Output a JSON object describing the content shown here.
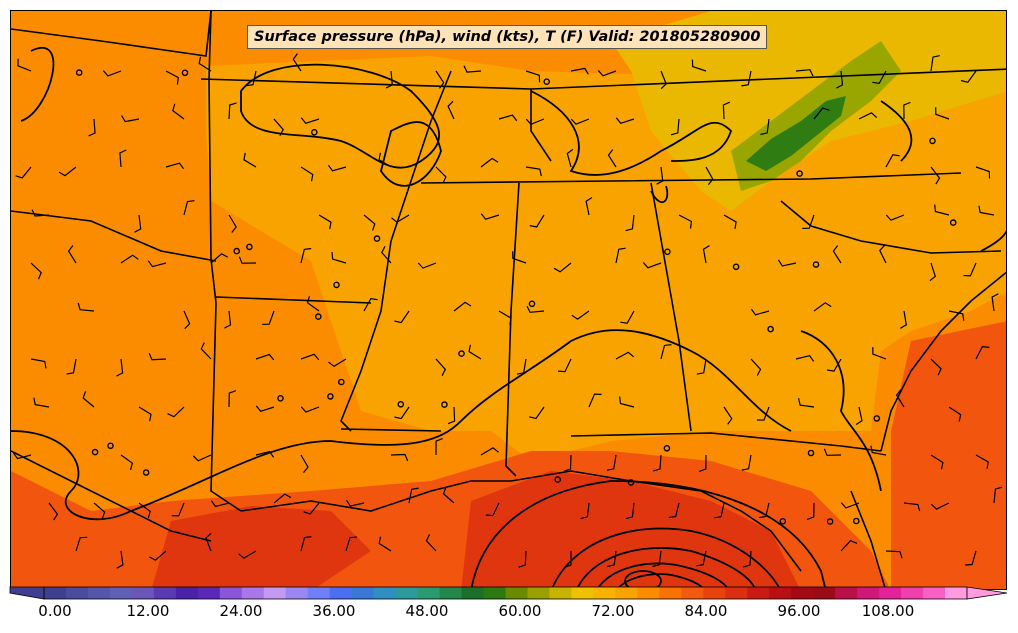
{
  "title": "Surface pressure (hPa), wind (kts), T (F) Valid: 201805280900",
  "colorbar": {
    "tick_labels": [
      "0.00",
      "12.00",
      "24.00",
      "36.00",
      "48.00",
      "60.00",
      "72.00",
      "84.00",
      "96.00",
      "108.00"
    ],
    "extend": "both"
  },
  "colors": {
    "orange_base": "#fb8c00",
    "orange_light": "#f9a300",
    "gold": "#e8b800",
    "olive": "#9aa600",
    "green": "#2f7d12",
    "red_orange": "#f2550e",
    "red": "#e0360f"
  },
  "layers": [
    "temperature-fill",
    "state-borders",
    "pressure-isobars",
    "wind-barbs",
    "station-markers"
  ]
}
